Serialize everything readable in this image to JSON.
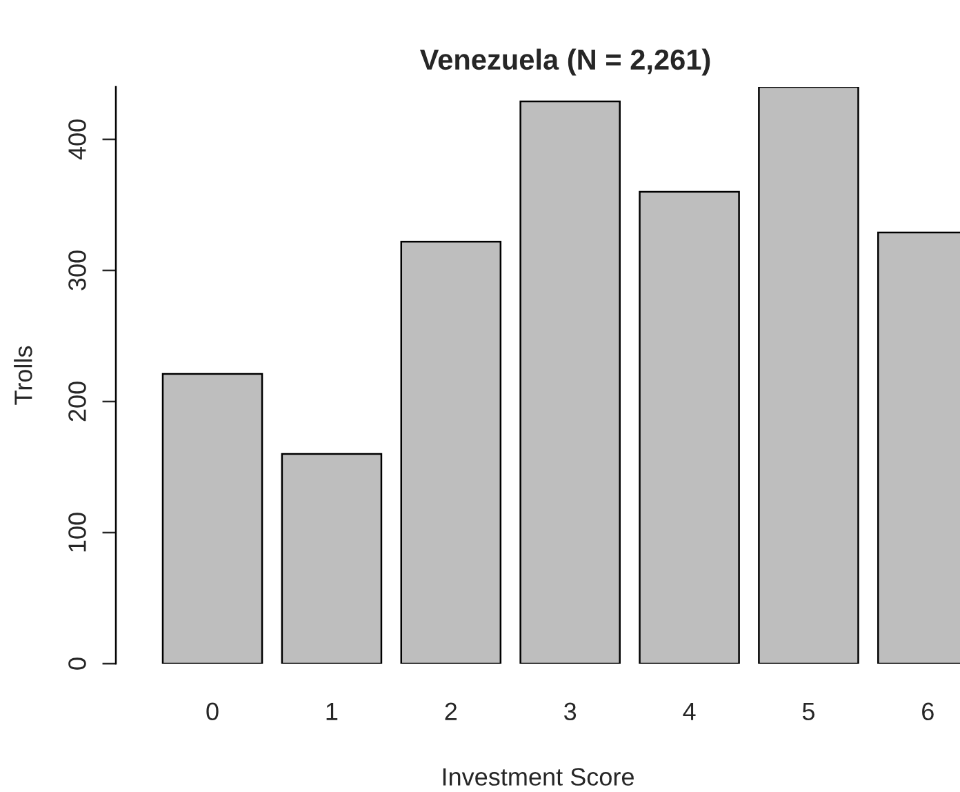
{
  "chart_data": {
    "type": "bar",
    "title": "Venezuela (N = 2,261)",
    "xlabel": "Investment Score",
    "ylabel": "Trolls",
    "categories": [
      "0",
      "1",
      "2",
      "3",
      "4",
      "5",
      "6"
    ],
    "values": [
      221,
      160,
      322,
      429,
      360,
      440,
      329
    ],
    "color": "#bebebe",
    "ylim": [
      0,
      440
    ],
    "yticks": [
      0,
      100,
      200,
      300,
      400
    ]
  }
}
